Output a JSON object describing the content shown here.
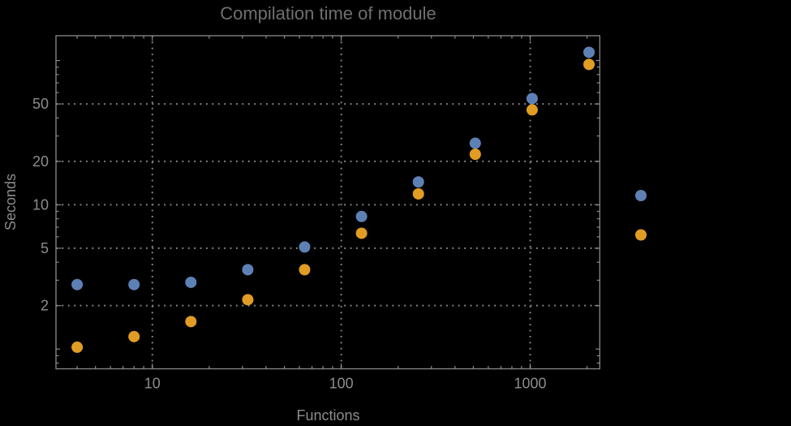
{
  "chart_data": {
    "type": "scatter",
    "title": "Compilation time of module",
    "xlabel": "Functions",
    "ylabel": "Seconds",
    "x_scale": "log",
    "y_scale": "log",
    "xlim": [
      3.09,
      2335
    ],
    "ylim": [
      0.73,
      148.6
    ],
    "grid": "dotted lines at labeled major ticks",
    "legend_position": "right-outside (markers only, no visible labels)",
    "x": [
      4,
      8,
      16,
      32,
      64,
      128,
      256,
      512,
      1024,
      2048
    ],
    "series": [
      {
        "name": "blue",
        "color": "#5e81b5",
        "values": [
          2.8,
          2.8,
          2.9,
          3.55,
          5.1,
          8.3,
          14.4,
          26.7,
          54.5,
          114
        ]
      },
      {
        "name": "orange",
        "color": "#e19c24",
        "values": [
          1.03,
          1.22,
          1.55,
          2.2,
          3.55,
          6.35,
          11.9,
          22.4,
          45.5,
          94
        ]
      }
    ],
    "x_ticks": {
      "major": [
        10,
        100,
        1000
      ],
      "major_labels": [
        "10",
        "100",
        "1000"
      ],
      "minor": [
        4,
        5,
        6,
        7,
        8,
        9,
        20,
        30,
        40,
        50,
        60,
        70,
        80,
        90,
        200,
        300,
        400,
        500,
        600,
        700,
        800,
        900,
        2000
      ]
    },
    "y_ticks": {
      "major": [
        2,
        5,
        10,
        20,
        50
      ],
      "major_labels": [
        "2",
        "5",
        "10",
        "20",
        "50"
      ],
      "medium": [
        1,
        100
      ],
      "minor": [
        0.8,
        0.9,
        3,
        4,
        6,
        7,
        8,
        9,
        30,
        40,
        60,
        70,
        80,
        90
      ]
    }
  },
  "legend": {
    "markers": [
      {
        "name": "blue",
        "color": "#5e81b5"
      },
      {
        "name": "orange",
        "color": "#e19c24"
      }
    ]
  },
  "colors": {
    "background": "#000000",
    "frame": "#8a8a8a",
    "grid": "#8a8a8a",
    "tick_label": "#8c8c8c",
    "axis_label": "#8c8c8c",
    "title": "#6f6f6f",
    "series_blue": "#5e81b5",
    "series_orange": "#e19c24"
  }
}
